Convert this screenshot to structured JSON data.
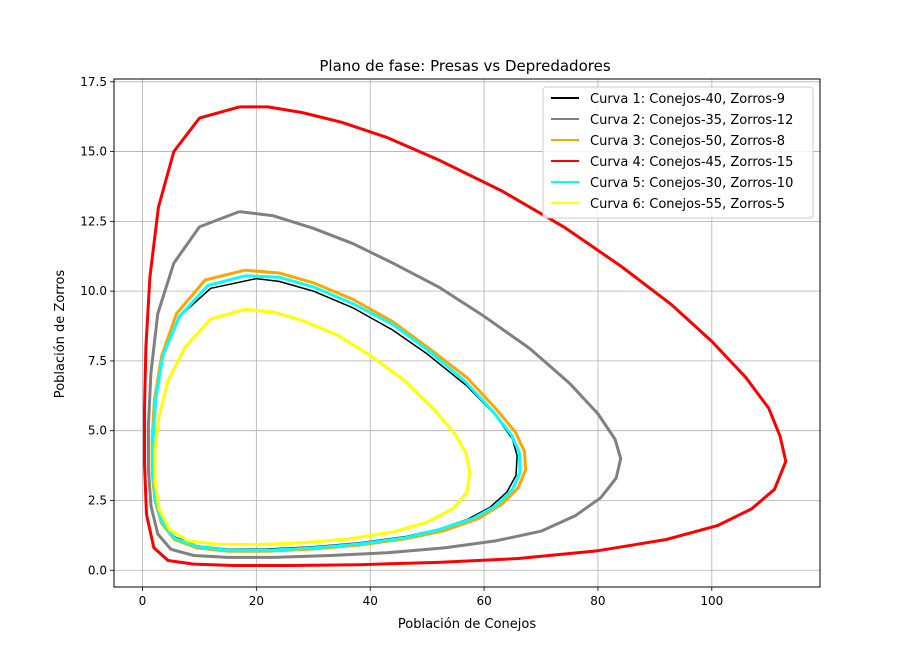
{
  "chart_data": {
    "type": "line",
    "title": "Plano de fase: Presas vs Depredadores",
    "xlabel": "Población de Conejos",
    "ylabel": "Población de Zorros",
    "xlim": [
      -5,
      119
    ],
    "ylim": [
      -0.6,
      17.6
    ],
    "xticks": [
      0,
      20,
      40,
      60,
      80,
      100
    ],
    "yticks": [
      0.0,
      2.5,
      5.0,
      7.5,
      10.0,
      12.5,
      15.0,
      17.5
    ],
    "xtick_labels": [
      "0",
      "20",
      "40",
      "60",
      "80",
      "100"
    ],
    "ytick_labels": [
      "0.0",
      "2.5",
      "5.0",
      "7.5",
      "10.0",
      "12.5",
      "15.0",
      "17.5"
    ],
    "grid": true,
    "legend_position": "top-right",
    "series": [
      {
        "name": "Curva 1: Conejos-40, Zorros-9",
        "color": "#000000",
        "x": [
          20,
          12,
          6.5,
          3.6,
          2.3,
          1.9,
          1.9,
          2.3,
          3.4,
          5.6,
          9.5,
          15,
          22,
          30,
          38,
          46,
          52,
          57,
          61,
          64,
          65.6,
          65.8,
          65,
          62,
          57,
          50,
          44,
          37,
          30,
          24,
          20
        ],
        "y": [
          10.45,
          10.1,
          9.1,
          7.8,
          6.2,
          4.8,
          3.6,
          2.6,
          1.8,
          1.2,
          0.88,
          0.75,
          0.76,
          0.84,
          0.98,
          1.2,
          1.47,
          1.82,
          2.25,
          2.8,
          3.4,
          4.1,
          4.7,
          5.55,
          6.6,
          7.75,
          8.6,
          9.4,
          10.0,
          10.35,
          10.45
        ]
      },
      {
        "name": "Curva 2: Conejos-35, Zorros-12",
        "color": "#808080",
        "x": [
          17,
          10,
          5.5,
          2.7,
          1.5,
          1.05,
          1.05,
          1.5,
          2.7,
          5,
          9,
          15,
          23,
          33,
          43,
          53,
          62,
          70,
          76,
          80.5,
          83.2,
          84,
          83,
          80,
          75,
          68,
          60,
          52,
          44,
          37,
          30,
          23,
          17
        ],
        "y": [
          12.85,
          12.3,
          11,
          9.2,
          7.1,
          5.2,
          3.6,
          2.3,
          1.3,
          0.75,
          0.53,
          0.46,
          0.46,
          0.53,
          0.63,
          0.8,
          1.05,
          1.4,
          1.95,
          2.6,
          3.3,
          4.0,
          4.7,
          5.6,
          6.7,
          7.95,
          9.1,
          10.15,
          11.0,
          11.7,
          12.25,
          12.7,
          12.85
        ]
      },
      {
        "name": "Curva 3: Conejos-50, Zorros-8",
        "color": "#ffa500",
        "x": [
          18,
          11,
          6,
          3.4,
          2.1,
          1.7,
          1.7,
          2.2,
          3.3,
          5.6,
          9.5,
          15,
          22,
          30,
          38,
          46,
          53,
          59,
          63,
          66,
          67.3,
          67.1,
          65.5,
          62,
          57,
          50,
          44,
          37,
          30,
          24,
          18
        ],
        "y": [
          10.75,
          10.4,
          9.2,
          7.7,
          6.1,
          4.7,
          3.5,
          2.5,
          1.7,
          1.1,
          0.8,
          0.68,
          0.68,
          0.76,
          0.9,
          1.12,
          1.42,
          1.85,
          2.35,
          2.95,
          3.6,
          4.25,
          4.95,
          5.8,
          6.9,
          8.0,
          8.9,
          9.7,
          10.3,
          10.65,
          10.75
        ]
      },
      {
        "name": "Curva 4: Conejos-45, Zorros-15",
        "color": "#ff0000",
        "x": [
          17,
          10,
          5.5,
          2.8,
          1.3,
          0.6,
          0.35,
          0.35,
          0.7,
          2,
          4.5,
          9,
          16,
          26,
          38,
          52,
          66,
          80,
          92,
          101,
          107,
          111,
          113,
          112,
          110,
          106,
          100,
          93,
          84,
          74,
          63,
          52,
          43,
          35,
          28,
          22,
          17
        ],
        "y": [
          16.6,
          16.2,
          15.0,
          13.0,
          10.5,
          8.0,
          5.8,
          3.8,
          2.0,
          0.8,
          0.35,
          0.22,
          0.17,
          0.17,
          0.2,
          0.28,
          0.42,
          0.7,
          1.1,
          1.6,
          2.2,
          2.9,
          3.9,
          4.8,
          5.8,
          6.9,
          8.2,
          9.5,
          10.9,
          12.3,
          13.6,
          14.7,
          15.5,
          16.05,
          16.4,
          16.6,
          16.6
        ]
      },
      {
        "name": "Curva 5: Conejos-30, Zorros-10",
        "color": "#00ffff",
        "x": [
          18,
          11.5,
          6.5,
          3.6,
          2.3,
          1.85,
          1.85,
          2.3,
          3.4,
          5.6,
          9.5,
          15,
          22,
          30,
          38,
          46,
          52,
          58,
          62,
          65,
          66.3,
          66.2,
          64.8,
          61.5,
          56.5,
          50,
          44,
          37,
          30,
          24,
          18
        ],
        "y": [
          10.55,
          10.2,
          9.1,
          7.7,
          6.1,
          4.7,
          3.5,
          2.5,
          1.75,
          1.15,
          0.85,
          0.72,
          0.72,
          0.8,
          0.94,
          1.16,
          1.45,
          1.85,
          2.3,
          2.9,
          3.5,
          4.2,
          4.85,
          5.7,
          6.8,
          7.9,
          8.8,
          9.55,
          10.15,
          10.5,
          10.55
        ]
      },
      {
        "name": "Curva 6: Conejos-55, Zorros-5",
        "color": "#ffff00",
        "x": [
          18,
          12,
          7.5,
          4.5,
          2.9,
          2.2,
          2.2,
          2.9,
          4.8,
          8,
          13,
          20,
          28,
          36,
          44,
          50,
          54.5,
          57,
          57.5,
          56.8,
          55,
          51.5,
          46,
          40,
          34,
          28,
          23,
          18
        ],
        "y": [
          9.35,
          9.0,
          8.0,
          6.8,
          5.5,
          4.3,
          3.2,
          2.2,
          1.45,
          1.05,
          0.93,
          0.92,
          0.98,
          1.12,
          1.37,
          1.72,
          2.2,
          2.8,
          3.5,
          4.2,
          4.85,
          5.7,
          6.8,
          7.7,
          8.45,
          8.95,
          9.25,
          9.35
        ]
      }
    ]
  }
}
